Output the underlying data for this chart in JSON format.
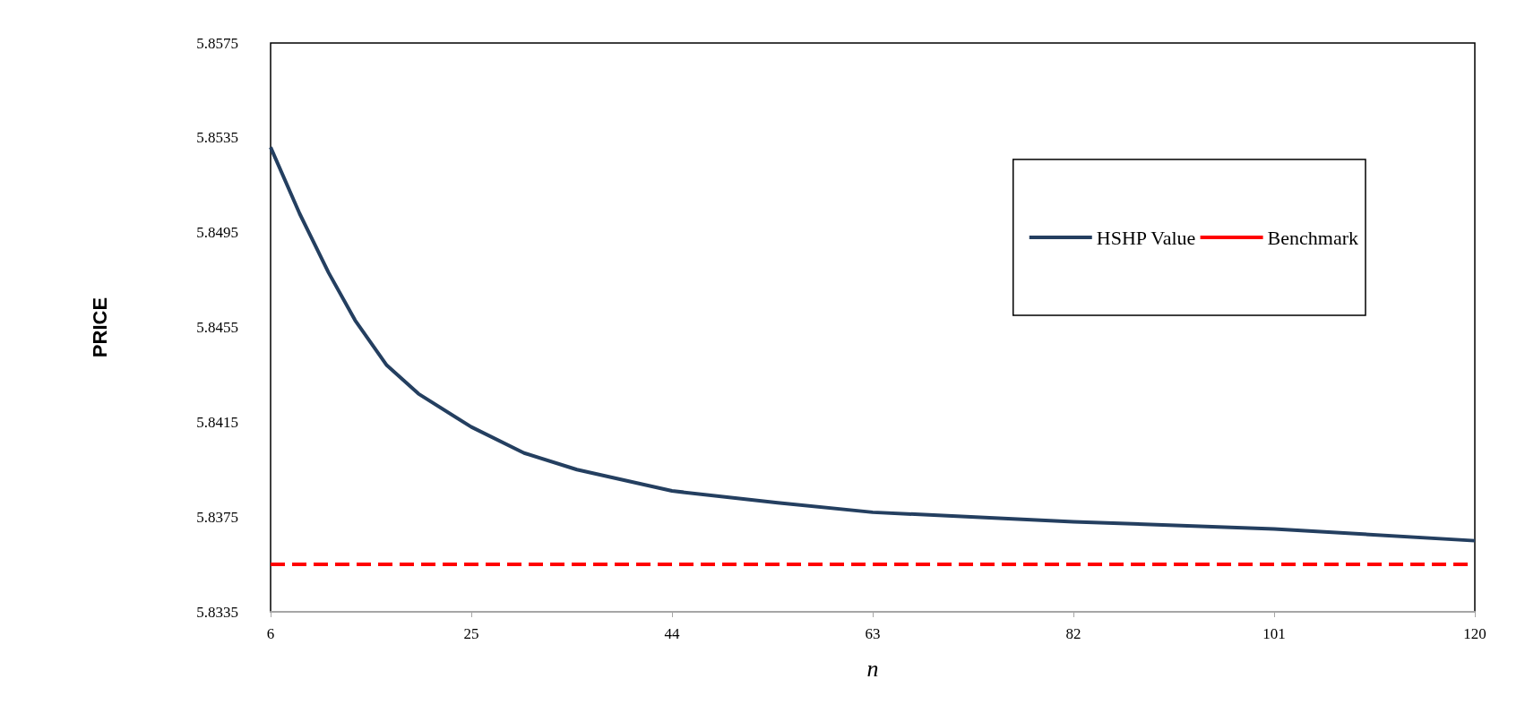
{
  "chart_data": {
    "type": "line",
    "xlabel": "n",
    "ylabel": "PRICE",
    "xlim": [
      6,
      120
    ],
    "xticks": [
      6,
      25,
      44,
      63,
      82,
      101,
      120
    ],
    "ylim": [
      5.8335,
      5.8575
    ],
    "yticks": [
      5.8335,
      5.8375,
      5.8415,
      5.8455,
      5.8495,
      5.8535,
      5.8575
    ],
    "grid": false,
    "legend": "top right",
    "marker": "none",
    "series": [
      {
        "name": "HSHP Value",
        "color": "#243f60",
        "line_style": "solid",
        "x": [
          6,
          8.75,
          11.5,
          14,
          17,
          20,
          25,
          30,
          35,
          44,
          54,
          63,
          82,
          101,
          120
        ],
        "values": [
          5.8531,
          5.8503,
          5.8478,
          5.8458,
          5.8439,
          5.8427,
          5.8413,
          5.8402,
          5.8395,
          5.8386,
          5.8381,
          5.8377,
          5.8373,
          5.837,
          5.8365
        ]
      },
      {
        "name": "Benchmark",
        "color": "#ff0000",
        "line_style": "dashed",
        "x": [
          6,
          120
        ],
        "values": [
          5.8355,
          5.8355
        ]
      }
    ]
  }
}
